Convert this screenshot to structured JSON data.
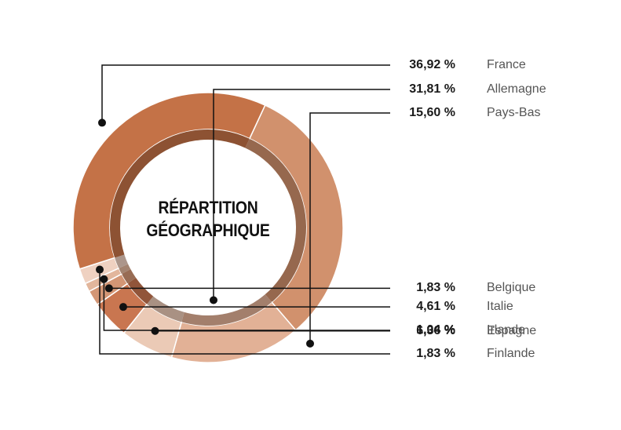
{
  "chart_data": {
    "type": "pie",
    "title_lines": [
      "RÉPARTITION",
      "GÉOGRAPHIQUE"
    ],
    "slices": [
      {
        "name": "Allemagne",
        "pct_label": "31,81 %",
        "value": 31.81,
        "color": "#d1916d"
      },
      {
        "name": "Pays-Bas",
        "pct_label": "15,60 %",
        "value": 15.6,
        "color": "#e2b196"
      },
      {
        "name": "Espagne",
        "pct_label": "6,36 %",
        "value": 6.36,
        "color": "#ebcab6"
      },
      {
        "name": "Italie",
        "pct_label": "4,61 %",
        "value": 4.61,
        "color": "#c97650"
      },
      {
        "name": "Belgique",
        "pct_label": "1,83 %",
        "value": 1.83,
        "color": "#d39675"
      },
      {
        "name": "Irlande",
        "pct_label": "1,04 %",
        "value": 1.04,
        "color": "#e2b69c"
      },
      {
        "name": "Finlande",
        "pct_label": "1,83 %",
        "value": 1.83,
        "color": "#efd1c1"
      },
      {
        "name": "France",
        "pct_label": "36,92 %",
        "value": 36.92,
        "color": "#c47247"
      }
    ],
    "legend_order": [
      "France",
      "Allemagne",
      "Pays-Bas",
      "Espagne",
      "Italie",
      "Belgique",
      "Irlande",
      "Finlande"
    ]
  }
}
